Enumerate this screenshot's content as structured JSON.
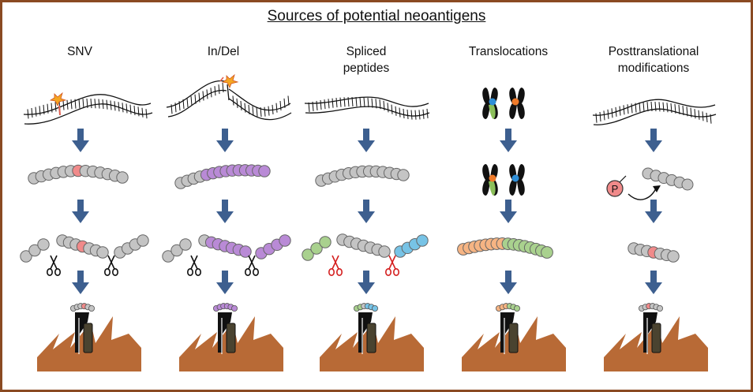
{
  "title": "Sources of potential neoantigens",
  "columns": [
    {
      "label": "SNV"
    },
    {
      "label": "In/Del"
    },
    {
      "label": "Spliced\npeptides"
    },
    {
      "label": "Translocations"
    },
    {
      "label": "Posttranslational\nmodifications"
    }
  ],
  "phospho_label": "P",
  "colors": {
    "frame": "#8a4a22",
    "arrow": "#3d5f8f",
    "bead_gray": "#c4c4c4",
    "bead_red": "#f08a8a",
    "bead_purple": "#b98ad6",
    "bead_green": "#a9d18e",
    "bead_blue": "#77c3e6",
    "bead_orange": "#f6b483",
    "cell": "#b86a36",
    "scissors_red": "#d42020"
  },
  "icons": [
    "dna-strand-icon",
    "mutation-spark-icon",
    "peptide-chain-icon",
    "scissors-icon",
    "chromosome-icon",
    "phosphate-icon",
    "mhc-molecule-icon",
    "cell-surface-icon"
  ]
}
